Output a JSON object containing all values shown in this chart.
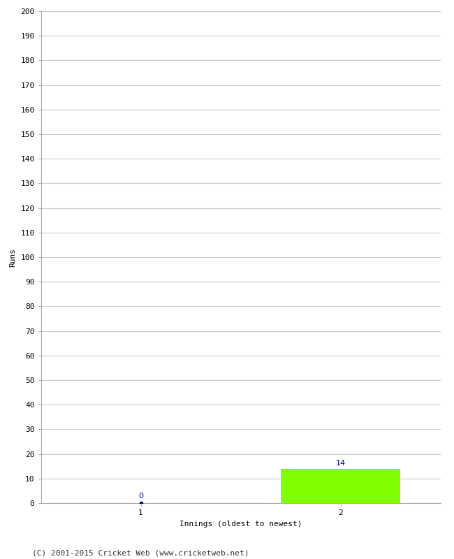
{
  "xlabel": "Innings (oldest to newest)",
  "ylabel": "Runs",
  "categories": [
    1,
    2
  ],
  "values": [
    0,
    14
  ],
  "bar_color": "#7fff00",
  "ylim": [
    0,
    200
  ],
  "ytick_step": 10,
  "background_color": "#ffffff",
  "grid_color": "#cccccc",
  "annotation_color": "#00008b",
  "footer": "(C) 2001-2015 Cricket Web (www.cricketweb.net)",
  "bar_width": 0.6,
  "xlim": [
    0.5,
    2.5
  ],
  "dot_color": "#00008b"
}
